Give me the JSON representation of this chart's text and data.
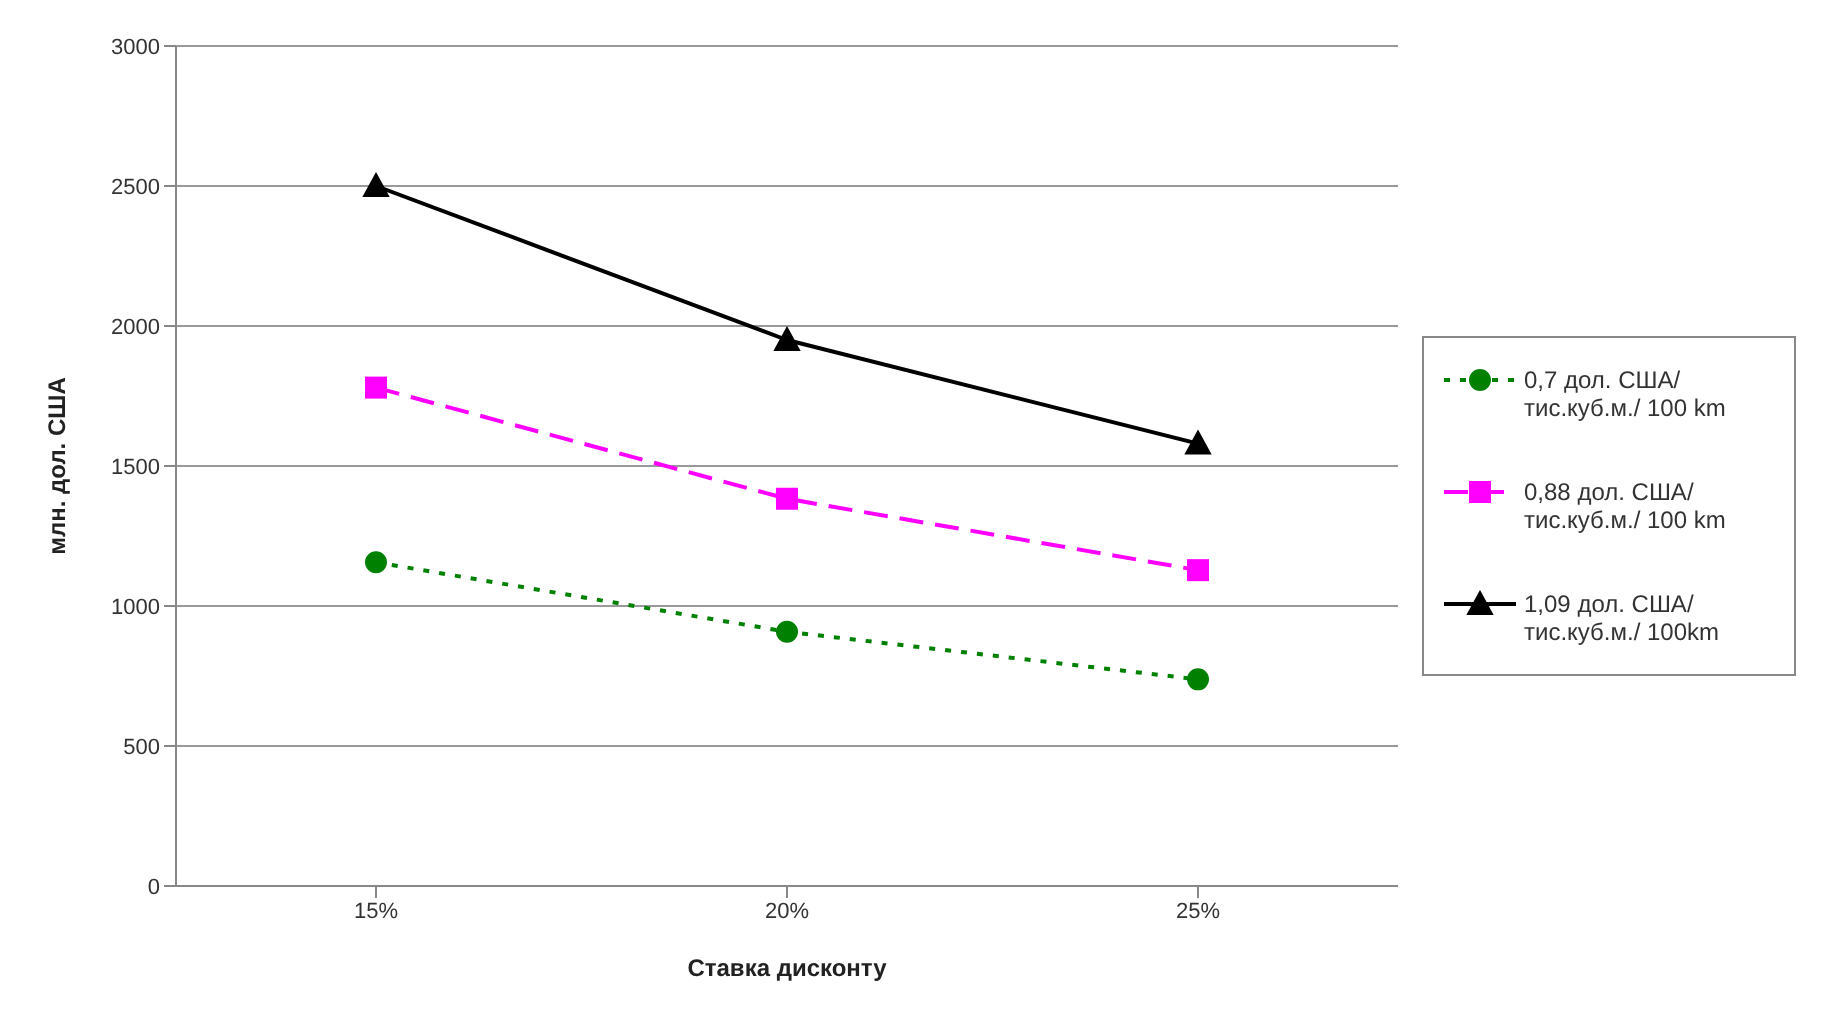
{
  "chart_data": {
    "type": "line",
    "xlabel": "Ставка дисконту",
    "ylabel": "млн. дол. США",
    "categories": [
      "15%",
      "20%",
      "25%"
    ],
    "series": [
      {
        "name": "0,7 дол. США/ тис.куб.м./ 100 km",
        "color": "#008000",
        "values": [
          1156,
          908,
          738
        ],
        "marker": "circle",
        "line_style": "dotted"
      },
      {
        "name": "0,88 дол. США/ тис.куб.м./ 100 km",
        "color": "#ff00ff",
        "values": [
          1780,
          1383,
          1128
        ],
        "marker": "square",
        "line_style": "dashed"
      },
      {
        "name": "1,09 дол. США/ тис.куб.м./ 100km",
        "color": "#000000",
        "values": [
          2500,
          1950,
          1580
        ],
        "marker": "triangle",
        "line_style": "solid"
      }
    ],
    "ylim": [
      0,
      3000
    ],
    "yticks": [
      0,
      500,
      1000,
      1500,
      2000,
      2500,
      3000
    ],
    "grid": "y",
    "legend": "right"
  }
}
